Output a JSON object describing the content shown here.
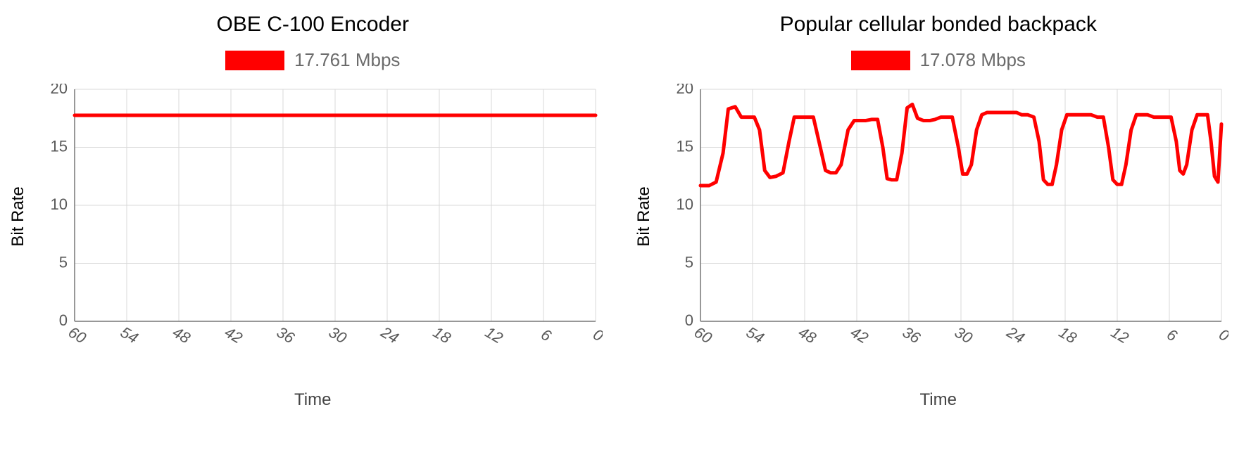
{
  "layout": {
    "background_color": "#ffffff",
    "panels_side_by_side": true
  },
  "chart_left": {
    "type": "line",
    "title": "OBE C-100 Encoder",
    "title_fontsize": 30,
    "title_color": "#000000",
    "legend": {
      "swatch_color": "#ff0000",
      "swatch_width": 84,
      "swatch_height": 28,
      "label": "17.761 Mbps",
      "label_color": "#6b6b6b",
      "label_fontsize": 26
    },
    "ylabel": "Bit Rate",
    "xlabel": "Time",
    "axis_label_fontsize": 24,
    "xlim": [
      60,
      0
    ],
    "ylim": [
      0,
      20
    ],
    "x_direction": "descending",
    "xticks": [
      60,
      54,
      48,
      42,
      36,
      30,
      24,
      18,
      12,
      6,
      0
    ],
    "yticks": [
      0,
      5,
      10,
      15,
      20
    ],
    "tick_fontsize": 22,
    "tick_color": "#585858",
    "xtick_rotation_deg": 30,
    "grid_color": "#d9d9d9",
    "axis_color": "#777777",
    "series": {
      "color": "#ff0000",
      "width": 5,
      "points": [
        [
          60,
          17.76
        ],
        [
          59,
          17.76
        ],
        [
          58,
          17.76
        ],
        [
          57,
          17.76
        ],
        [
          56,
          17.76
        ],
        [
          55,
          17.76
        ],
        [
          54,
          17.76
        ],
        [
          53,
          17.76
        ],
        [
          52,
          17.76
        ],
        [
          51,
          17.76
        ],
        [
          50,
          17.76
        ],
        [
          49,
          17.76
        ],
        [
          48,
          17.76
        ],
        [
          47,
          17.76
        ],
        [
          46,
          17.76
        ],
        [
          45,
          17.76
        ],
        [
          44,
          17.76
        ],
        [
          43,
          17.76
        ],
        [
          42,
          17.76
        ],
        [
          41,
          17.76
        ],
        [
          40,
          17.76
        ],
        [
          39,
          17.76
        ],
        [
          38,
          17.76
        ],
        [
          37,
          17.76
        ],
        [
          36,
          17.76
        ],
        [
          35,
          17.76
        ],
        [
          34,
          17.76
        ],
        [
          33,
          17.76
        ],
        [
          32,
          17.76
        ],
        [
          31,
          17.76
        ],
        [
          30,
          17.76
        ],
        [
          29,
          17.76
        ],
        [
          28,
          17.76
        ],
        [
          27,
          17.76
        ],
        [
          26,
          17.76
        ],
        [
          25,
          17.76
        ],
        [
          24,
          17.76
        ],
        [
          23,
          17.76
        ],
        [
          22,
          17.76
        ],
        [
          21,
          17.76
        ],
        [
          20,
          17.76
        ],
        [
          19,
          17.76
        ],
        [
          18,
          17.76
        ],
        [
          17,
          17.76
        ],
        [
          16,
          17.76
        ],
        [
          15,
          17.76
        ],
        [
          14,
          17.76
        ],
        [
          13,
          17.76
        ],
        [
          12,
          17.76
        ],
        [
          11,
          17.76
        ],
        [
          10,
          17.76
        ],
        [
          9,
          17.76
        ],
        [
          8,
          17.76
        ],
        [
          7,
          17.76
        ],
        [
          6,
          17.76
        ],
        [
          5,
          17.76
        ],
        [
          4,
          17.76
        ],
        [
          3,
          17.76
        ],
        [
          2,
          17.76
        ],
        [
          1,
          17.76
        ],
        [
          0,
          17.76
        ]
      ]
    }
  },
  "chart_right": {
    "type": "line",
    "title": "Popular cellular bonded backpack",
    "title_fontsize": 30,
    "title_color": "#000000",
    "legend": {
      "swatch_color": "#ff0000",
      "swatch_width": 84,
      "swatch_height": 28,
      "label": "17.078 Mbps",
      "label_color": "#6b6b6b",
      "label_fontsize": 26
    },
    "ylabel": "Bit Rate",
    "xlabel": "Time",
    "axis_label_fontsize": 24,
    "xlim": [
      60,
      0
    ],
    "ylim": [
      0,
      20
    ],
    "x_direction": "descending",
    "xticks": [
      60,
      54,
      48,
      42,
      36,
      30,
      24,
      18,
      12,
      6,
      0
    ],
    "yticks": [
      0,
      5,
      10,
      15,
      20
    ],
    "tick_fontsize": 22,
    "tick_color": "#585858",
    "xtick_rotation_deg": 30,
    "grid_color": "#d9d9d9",
    "axis_color": "#777777",
    "series": {
      "color": "#ff0000",
      "width": 5,
      "points": [
        [
          60,
          11.7
        ],
        [
          59,
          11.7
        ],
        [
          58.2,
          12.0
        ],
        [
          57.4,
          14.5
        ],
        [
          56.8,
          18.3
        ],
        [
          56,
          18.5
        ],
        [
          55.3,
          17.6
        ],
        [
          54.5,
          17.6
        ],
        [
          53.8,
          17.6
        ],
        [
          53.2,
          16.5
        ],
        [
          52.6,
          13.0
        ],
        [
          52,
          12.4
        ],
        [
          51.3,
          12.5
        ],
        [
          50.5,
          12.8
        ],
        [
          49.8,
          15.5
        ],
        [
          49.2,
          17.6
        ],
        [
          48.5,
          17.6
        ],
        [
          47.8,
          17.6
        ],
        [
          47,
          17.6
        ],
        [
          46.2,
          15.0
        ],
        [
          45.6,
          13.0
        ],
        [
          45,
          12.8
        ],
        [
          44.4,
          12.8
        ],
        [
          43.8,
          13.5
        ],
        [
          43,
          16.5
        ],
        [
          42.3,
          17.3
        ],
        [
          41.6,
          17.3
        ],
        [
          41,
          17.3
        ],
        [
          40.3,
          17.4
        ],
        [
          39.6,
          17.4
        ],
        [
          39,
          15.0
        ],
        [
          38.5,
          12.3
        ],
        [
          38,
          12.2
        ],
        [
          37.4,
          12.2
        ],
        [
          36.8,
          14.5
        ],
        [
          36.2,
          18.4
        ],
        [
          35.6,
          18.7
        ],
        [
          35,
          17.5
        ],
        [
          34.3,
          17.3
        ],
        [
          33.6,
          17.3
        ],
        [
          33,
          17.4
        ],
        [
          32.3,
          17.6
        ],
        [
          31.6,
          17.6
        ],
        [
          31,
          17.6
        ],
        [
          30.3,
          15.0
        ],
        [
          29.8,
          12.7
        ],
        [
          29.3,
          12.7
        ],
        [
          28.8,
          13.5
        ],
        [
          28.2,
          16.5
        ],
        [
          27.6,
          17.8
        ],
        [
          27,
          18.0
        ],
        [
          26.3,
          18.0
        ],
        [
          25.6,
          18.0
        ],
        [
          25,
          18.0
        ],
        [
          24.3,
          18.0
        ],
        [
          23.6,
          18.0
        ],
        [
          23,
          17.8
        ],
        [
          22.3,
          17.8
        ],
        [
          21.6,
          17.6
        ],
        [
          21,
          15.5
        ],
        [
          20.5,
          12.2
        ],
        [
          20,
          11.8
        ],
        [
          19.5,
          11.8
        ],
        [
          19,
          13.5
        ],
        [
          18.4,
          16.5
        ],
        [
          17.8,
          17.8
        ],
        [
          17.2,
          17.8
        ],
        [
          16.5,
          17.8
        ],
        [
          15.8,
          17.8
        ],
        [
          15,
          17.8
        ],
        [
          14.3,
          17.6
        ],
        [
          13.6,
          17.6
        ],
        [
          13,
          15.0
        ],
        [
          12.5,
          12.2
        ],
        [
          12,
          11.8
        ],
        [
          11.5,
          11.8
        ],
        [
          11,
          13.5
        ],
        [
          10.4,
          16.5
        ],
        [
          9.8,
          17.8
        ],
        [
          9.2,
          17.8
        ],
        [
          8.5,
          17.8
        ],
        [
          7.8,
          17.6
        ],
        [
          7.2,
          17.6
        ],
        [
          6.5,
          17.6
        ],
        [
          5.8,
          17.6
        ],
        [
          5.2,
          15.5
        ],
        [
          4.8,
          13.0
        ],
        [
          4.4,
          12.7
        ],
        [
          4,
          13.5
        ],
        [
          3.4,
          16.5
        ],
        [
          2.8,
          17.8
        ],
        [
          2.2,
          17.8
        ],
        [
          1.6,
          17.8
        ],
        [
          1.2,
          15.5
        ],
        [
          0.8,
          12.5
        ],
        [
          0.4,
          12.0
        ],
        [
          0,
          17.0
        ]
      ]
    }
  }
}
